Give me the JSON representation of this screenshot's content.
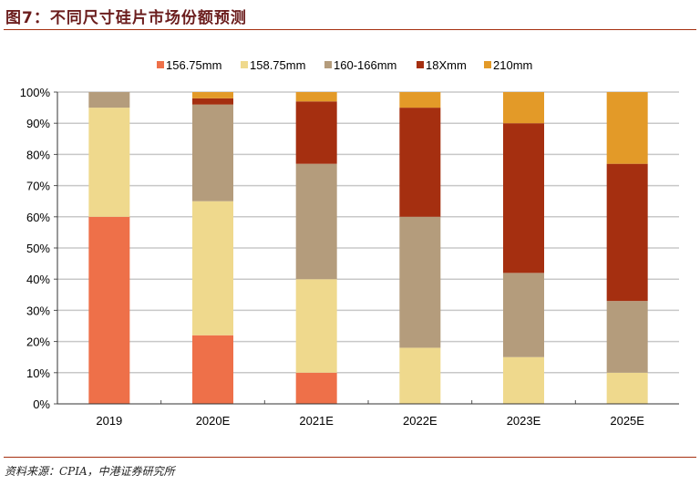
{
  "title": "图7：不同尺寸硅片市场份额预测",
  "source": "资料来源：CPIA，中港证券研究所",
  "chart_data": {
    "type": "bar",
    "stacked": true,
    "categories": [
      "2019",
      "2020E",
      "2021E",
      "2022E",
      "2023E",
      "2025E"
    ],
    "series": [
      {
        "name": "156.75mm",
        "color": "#ee7049",
        "values": [
          60,
          22,
          10,
          0,
          0,
          0
        ]
      },
      {
        "name": "158.75mm",
        "color": "#efd98d",
        "values": [
          35,
          43,
          30,
          18,
          15,
          10
        ]
      },
      {
        "name": "160-166mm",
        "color": "#b49c7c",
        "values": [
          5,
          31,
          37,
          42,
          27,
          23
        ]
      },
      {
        "name": "18Xmm",
        "color": "#a52f10",
        "values": [
          0,
          2,
          20,
          35,
          48,
          44
        ]
      },
      {
        "name": "210mm",
        "color": "#e39a28",
        "values": [
          0,
          2,
          3,
          5,
          10,
          23
        ]
      }
    ],
    "ylim": [
      0,
      100
    ],
    "yticks": [
      "0%",
      "10%",
      "20%",
      "30%",
      "40%",
      "50%",
      "60%",
      "70%",
      "80%",
      "90%",
      "100%"
    ],
    "legend": "top",
    "grid": true
  }
}
